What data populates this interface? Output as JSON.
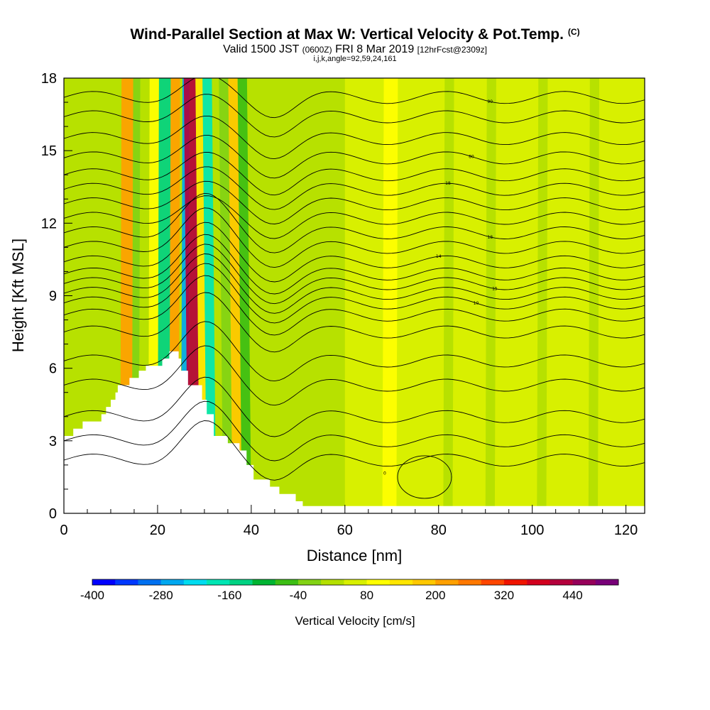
{
  "titles": {
    "main": "Wind-Parallel Section at Max W: Vertical Velocity & Pot.Temp.",
    "copyright": "(C)",
    "valid_prefix": "Valid 1500 JST",
    "valid_utc": "(0600Z)",
    "valid_date": "FRI 8 Mar 2019",
    "forecast": "[12hrFcst@2309z]",
    "grid": "i,j,k,angle=92,59,24,161"
  },
  "chart_data": {
    "type": "heatmap",
    "xlabel": "Distance [nm]",
    "ylabel": "Height [Kft MSL]",
    "xlim": [
      0,
      124
    ],
    "ylim": [
      0,
      18
    ],
    "x_ticks": [
      0,
      20,
      40,
      60,
      80,
      100,
      120
    ],
    "y_ticks": [
      0,
      3,
      6,
      9,
      12,
      15,
      18
    ],
    "grid": false,
    "colorbar": {
      "title": "Vertical Velocity [cm/s]",
      "min": -400,
      "max": 480,
      "step": 40,
      "tick_labels": [
        -400,
        -280,
        -160,
        -40,
        80,
        200,
        320,
        440
      ],
      "colors": [
        "#0000ff",
        "#0038ff",
        "#0070f0",
        "#00a8f0",
        "#00dcf0",
        "#00e6b4",
        "#00d282",
        "#00b432",
        "#3cbe14",
        "#82d214",
        "#b4e000",
        "#d8f000",
        "#ffff00",
        "#ffe600",
        "#ffc800",
        "#ffa000",
        "#ff7800",
        "#ff4600",
        "#f01400",
        "#d2001e",
        "#b4003c",
        "#96005a",
        "#780078"
      ]
    },
    "velocity_field": [
      {
        "x0": 0,
        "x1": 124,
        "value": 60
      },
      {
        "x0": 0,
        "x1": 60,
        "value": 20
      },
      {
        "x0": 12,
        "x1": 14.5,
        "value": 220
      },
      {
        "x0": 14.5,
        "x1": 16,
        "value": -40
      },
      {
        "x0": 18,
        "x1": 20,
        "value": 100
      },
      {
        "x0": 20,
        "x1": 22.5,
        "value": -160
      },
      {
        "x0": 22.5,
        "x1": 24.5,
        "value": 200
      },
      {
        "x0": 25,
        "x1": 26.5,
        "value": -250
      },
      {
        "x0": 26.5,
        "x1": 29,
        "value": 400
      },
      {
        "x0": 29,
        "x1": 30.5,
        "value": 140
      },
      {
        "x0": 30.5,
        "x1": 32.5,
        "value": -180
      },
      {
        "x0": 34,
        "x1": 36,
        "value": -20
      },
      {
        "x0": 36,
        "x1": 38,
        "value": 180
      },
      {
        "x0": 38,
        "x1": 40,
        "value": -80
      },
      {
        "x0": 68,
        "x1": 71,
        "value": 100
      },
      {
        "x0": 81,
        "x1": 83,
        "value": 20
      },
      {
        "x0": 90,
        "x1": 92,
        "value": 20
      },
      {
        "x0": 101,
        "x1": 103,
        "value": 20
      },
      {
        "x0": 112,
        "x1": 114,
        "value": 20
      }
    ],
    "terrain": [
      [
        0,
        3.2
      ],
      [
        2,
        3.2
      ],
      [
        2,
        3.5
      ],
      [
        4,
        3.5
      ],
      [
        4,
        3.8
      ],
      [
        8,
        3.8
      ],
      [
        8,
        4.1
      ],
      [
        9,
        4.1
      ],
      [
        9,
        4.4
      ],
      [
        10,
        4.4
      ],
      [
        10,
        4.7
      ],
      [
        11,
        4.7
      ],
      [
        11,
        5.0
      ],
      [
        11.5,
        5.0
      ],
      [
        11.5,
        5.3
      ],
      [
        14,
        5.3
      ],
      [
        14,
        5.6
      ],
      [
        16,
        5.6
      ],
      [
        16,
        5.9
      ],
      [
        17.5,
        5.9
      ],
      [
        17.5,
        6.1
      ],
      [
        21,
        6.1
      ],
      [
        21,
        6.4
      ],
      [
        22.5,
        6.4
      ],
      [
        22.5,
        6.7
      ],
      [
        24.5,
        6.7
      ],
      [
        24.5,
        6.4
      ],
      [
        25,
        6.4
      ],
      [
        25,
        5.9
      ],
      [
        26.5,
        5.9
      ],
      [
        26.5,
        5.3
      ],
      [
        29.5,
        5.3
      ],
      [
        29.5,
        4.7
      ],
      [
        30.5,
        4.7
      ],
      [
        30.5,
        4.1
      ],
      [
        32,
        4.1
      ],
      [
        32,
        3.2
      ],
      [
        35,
        3.2
      ],
      [
        35,
        2.9
      ],
      [
        37.5,
        2.9
      ],
      [
        37.5,
        2.6
      ],
      [
        39,
        2.6
      ],
      [
        39,
        2.0
      ],
      [
        40.5,
        2.0
      ],
      [
        40.5,
        1.4
      ],
      [
        44,
        1.4
      ],
      [
        44,
        1.1
      ],
      [
        46,
        1.1
      ],
      [
        46,
        0.8
      ],
      [
        49.5,
        0.8
      ],
      [
        49.5,
        0.5
      ],
      [
        51,
        0.5
      ],
      [
        51,
        0.3
      ],
      [
        124,
        0.3
      ]
    ],
    "theta_contours": [
      {
        "base": 2.2,
        "label": "",
        "label_x": 8
      },
      {
        "base": 3.0,
        "label": "",
        "label_x": 40
      },
      {
        "base": 4.0,
        "label": "",
        "label_x": 40
      },
      {
        "base": 5.3,
        "label": "",
        "label_x": 40
      },
      {
        "base": 6.3,
        "label": "",
        "label_x": 40
      },
      {
        "base": 7.5,
        "label": "",
        "label_x": 40
      },
      {
        "base": 8.2,
        "label": "",
        "label_x": 40
      },
      {
        "base": 8.7,
        "label": "10",
        "label_x": 88
      },
      {
        "base": 9.1,
        "label": "",
        "label_x": 40
      },
      {
        "base": 9.5,
        "label": "15",
        "label_x": 92
      },
      {
        "base": 9.9,
        "label": "",
        "label_x": 40
      },
      {
        "base": 10.4,
        "label": "14",
        "label_x": 80
      },
      {
        "base": 11.0,
        "label": "",
        "label_x": 40
      },
      {
        "base": 11.6,
        "label": "18",
        "label_x": 91
      },
      {
        "base": 12.2,
        "label": "",
        "label_x": 40
      },
      {
        "base": 12.8,
        "label": "",
        "label_x": 40
      },
      {
        "base": 13.4,
        "label": "18",
        "label_x": 82
      },
      {
        "base": 14.0,
        "label": "",
        "label_x": 40
      },
      {
        "base": 14.7,
        "label": "80",
        "label_x": 87
      },
      {
        "base": 15.5,
        "label": "",
        "label_x": 40
      },
      {
        "base": 16.4,
        "label": "",
        "label_x": 40
      },
      {
        "base": 17.2,
        "label": "90",
        "label_x": 91
      }
    ],
    "low_contour_label": "0"
  }
}
